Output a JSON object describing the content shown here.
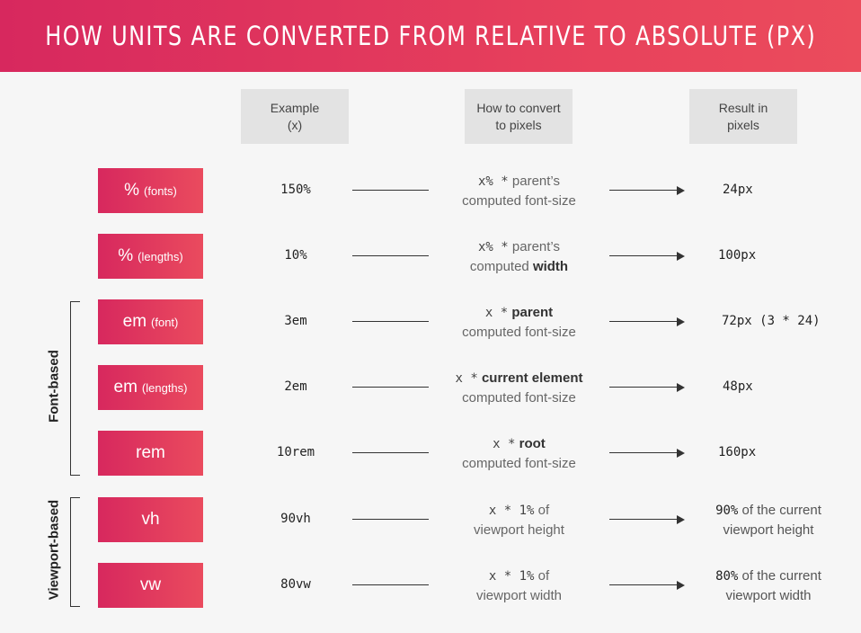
{
  "title": "HOW UNITS ARE CONVERTED FROM RELATIVE TO ABSOLUTE (PX)",
  "columns": {
    "example": {
      "line1": "Example",
      "line2": "(x)"
    },
    "convert": {
      "line1": "How to convert",
      "line2": "to pixels"
    },
    "result": {
      "line1": "Result in",
      "line2": "pixels"
    }
  },
  "groups": {
    "font_based": "Font-based",
    "viewport_based": "Viewport-based"
  },
  "rows": [
    {
      "unit": "%",
      "qualifier": "(fonts)",
      "example": "150%",
      "convert_code": "x% *",
      "convert_rest": "parent’s",
      "convert_bold": "",
      "convert_line2": "computed font-size",
      "convert_line2_bold": "",
      "result": "24px",
      "result_text": ""
    },
    {
      "unit": "%",
      "qualifier": "(lengths)",
      "example": "10%",
      "convert_code": "x% *",
      "convert_rest": "parent’s",
      "convert_bold": "",
      "convert_line2": "computed ",
      "convert_line2_bold": "width",
      "result": "100px",
      "result_text": ""
    },
    {
      "unit": "em",
      "qualifier": "(font)",
      "example": "3em",
      "convert_code": "x *",
      "convert_rest": "",
      "convert_bold": "parent",
      "convert_line2": "computed font-size",
      "convert_line2_bold": "",
      "result": "72px (3 * 24)",
      "result_text": ""
    },
    {
      "unit": "em",
      "qualifier": "(lengths)",
      "example": "2em",
      "convert_code": "x *",
      "convert_rest": "",
      "convert_bold": "current element",
      "convert_line2": "computed font-size",
      "convert_line2_bold": "",
      "result": "48px",
      "result_text": ""
    },
    {
      "unit": "rem",
      "qualifier": "",
      "example": "10rem",
      "convert_code": "x *",
      "convert_rest": "",
      "convert_bold": "root",
      "convert_line2": "computed font-size",
      "convert_line2_bold": "",
      "result": "160px",
      "result_text": ""
    },
    {
      "unit": "vh",
      "qualifier": "",
      "example": "90vh",
      "convert_code": "x * 1%",
      "convert_rest": "of",
      "convert_bold": "",
      "convert_line2": "viewport height",
      "convert_line2_bold": "",
      "result": "90%",
      "result_text": "of the current",
      "result_line2": "viewport height"
    },
    {
      "unit": "vw",
      "qualifier": "",
      "example": "80vw",
      "convert_code": "x * 1%",
      "convert_rest": "of",
      "convert_bold": "",
      "convert_line2": "viewport width",
      "convert_line2_bold": "",
      "result": "80%",
      "result_text": "of the current",
      "result_line2": "viewport width"
    }
  ]
}
